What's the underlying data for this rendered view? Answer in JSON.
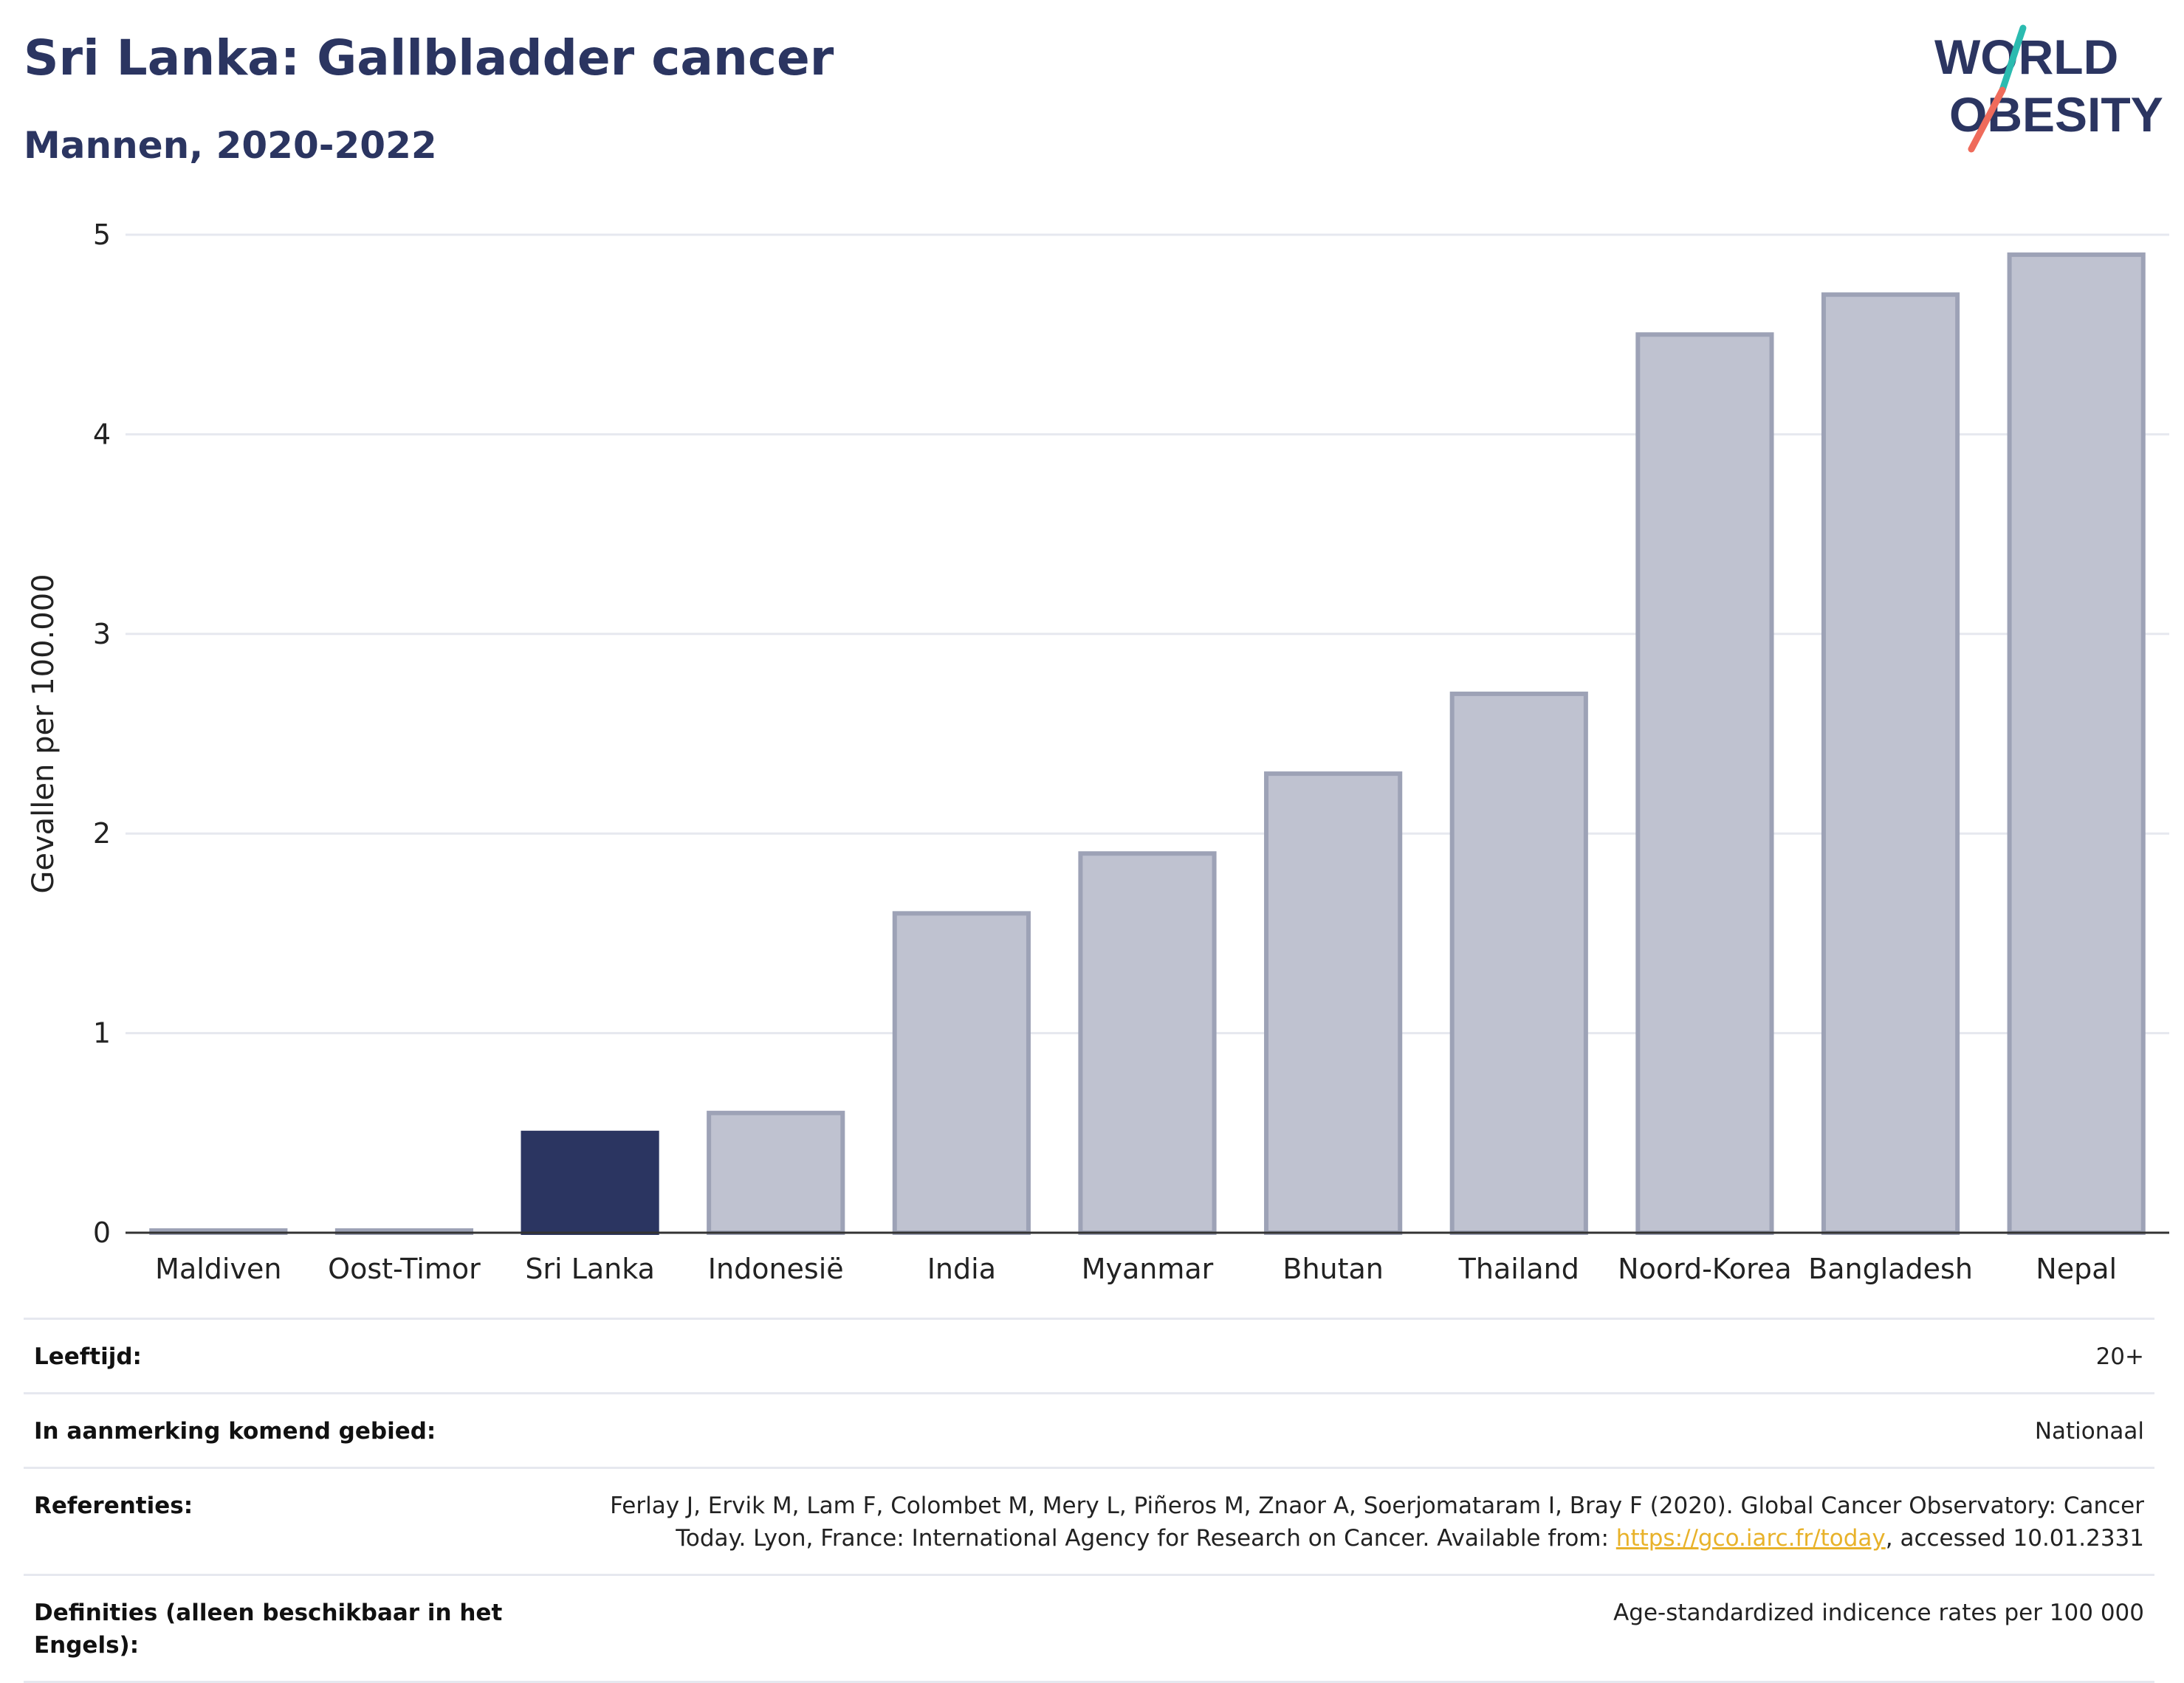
{
  "header": {
    "title": "Sri Lanka: Gallbladder cancer",
    "subtitle": "Mannen, 2020-2022",
    "logo_line1": "WORLD",
    "logo_line2": "OBESITY"
  },
  "colors": {
    "primary": "#2b3561",
    "highlight_bar": "#2b3561",
    "other_bar": "#bfc2d0",
    "other_bar_stroke": "#9da2b6",
    "link": "#e8b22a",
    "logo_teal": "#2bbbb0",
    "logo_coral": "#ef6b5b"
  },
  "chart_data": {
    "type": "bar",
    "title": "Sri Lanka: Gallbladder cancer",
    "subtitle": "Mannen, 2020-2022",
    "xlabel": "",
    "ylabel": "Gevallen per 100.000",
    "ylim": [
      0,
      5
    ],
    "yticks": [
      0,
      1,
      2,
      3,
      4,
      5
    ],
    "grid": true,
    "highlight": "Sri Lanka",
    "categories": [
      "Maldiven",
      "Oost-Timor",
      "Sri Lanka",
      "Indonesië",
      "India",
      "Myanmar",
      "Bhutan",
      "Thailand",
      "Noord-Korea",
      "Bangladesh",
      "Nepal"
    ],
    "values": [
      0.01,
      0.01,
      0.5,
      0.6,
      1.6,
      1.9,
      2.3,
      2.7,
      4.5,
      4.7,
      4.9
    ]
  },
  "meta": {
    "age_label": "Leeftijd:",
    "age_value": "20+",
    "area_label": "In aanmerking komend gebied:",
    "area_value": "Nationaal",
    "refs_label": "Referenties:",
    "refs_text_before": "Ferlay J, Ervik M, Lam F, Colombet M, Mery L, Piñeros M, Znaor A, Soerjomataram I, Bray F (2020). Global Cancer Observatory: Cancer Today. Lyon, France: International Agency for Research on Cancer. Available from: ",
    "refs_link": "https://gco.iarc.fr/today",
    "refs_text_after": ", accessed 10.01.2331",
    "defs_label": "Definities (alleen beschikbaar in het Engels):",
    "defs_value": "Age-standardized indicence rates per 100 000"
  }
}
